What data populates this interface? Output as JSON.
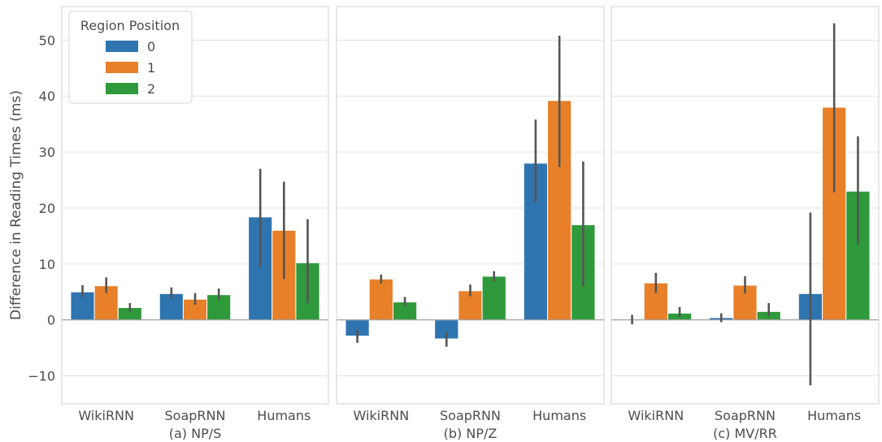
{
  "chart_data": {
    "type": "bar",
    "ylabel": "Difference in Reading Times (ms)",
    "ylim": [
      -15,
      56
    ],
    "yticks": [
      -10,
      0,
      10,
      20,
      30,
      40,
      50
    ],
    "ytick_labels": [
      "−10",
      "0",
      "10",
      "20",
      "30",
      "40",
      "50"
    ],
    "grid": true,
    "legend": {
      "title": "Region Position",
      "placement": "top-left",
      "entries": [
        "0",
        "1",
        "2"
      ]
    },
    "colors": [
      "#2e75b0",
      "#e8802a",
      "#2f9a3b"
    ],
    "error_bar_color": "#555555",
    "panels": [
      {
        "subtitle": "(a) NP/S",
        "categories": [
          "WikiRNN",
          "SoapRNN",
          "Humans"
        ],
        "series": [
          {
            "name": "0",
            "values": [
              5.0,
              4.7,
              18.4
            ],
            "err_low": [
              4.0,
              3.8,
              9.5
            ],
            "err_high": [
              6.2,
              5.8,
              27.0
            ]
          },
          {
            "name": "1",
            "values": [
              6.1,
              3.7,
              16.0
            ],
            "err_low": [
              4.8,
              2.7,
              7.3
            ],
            "err_high": [
              7.6,
              4.8,
              24.7
            ]
          },
          {
            "name": "2",
            "values": [
              2.2,
              4.5,
              10.2
            ],
            "err_low": [
              1.5,
              3.6,
              3.0
            ],
            "err_high": [
              3.0,
              5.6,
              18.0
            ]
          }
        ]
      },
      {
        "subtitle": "(b) NP/Z",
        "categories": [
          "WikiRNN",
          "SoapRNN",
          "Humans"
        ],
        "series": [
          {
            "name": "0",
            "values": [
              -2.9,
              -3.4,
              28.0
            ],
            "err_low": [
              -4.1,
              -4.8,
              21.0
            ],
            "err_high": [
              -1.8,
              -2.2,
              35.8
            ]
          },
          {
            "name": "1",
            "values": [
              7.3,
              5.2,
              39.2
            ],
            "err_low": [
              6.5,
              4.2,
              27.3
            ],
            "err_high": [
              8.1,
              6.3,
              50.8
            ]
          },
          {
            "name": "2",
            "values": [
              3.2,
              7.8,
              17.0
            ],
            "err_low": [
              2.5,
              6.9,
              6.0
            ],
            "err_high": [
              4.1,
              8.7,
              28.3
            ]
          }
        ]
      },
      {
        "subtitle": "(c) MV/RR",
        "categories": [
          "WikiRNN",
          "SoapRNN",
          "Humans"
        ],
        "series": [
          {
            "name": "0",
            "values": [
              0.1,
              0.4,
              4.7
            ],
            "err_low": [
              -0.8,
              -0.4,
              -11.7
            ],
            "err_high": [
              0.9,
              1.2,
              19.2
            ]
          },
          {
            "name": "1",
            "values": [
              6.6,
              6.2,
              38.0
            ],
            "err_low": [
              4.8,
              4.7,
              22.8
            ],
            "err_high": [
              8.4,
              7.8,
              53.0
            ]
          },
          {
            "name": "2",
            "values": [
              1.2,
              1.5,
              23.0
            ],
            "err_low": [
              0.5,
              0.6,
              13.4
            ],
            "err_high": [
              2.3,
              3.0,
              32.8
            ]
          }
        ]
      }
    ]
  }
}
